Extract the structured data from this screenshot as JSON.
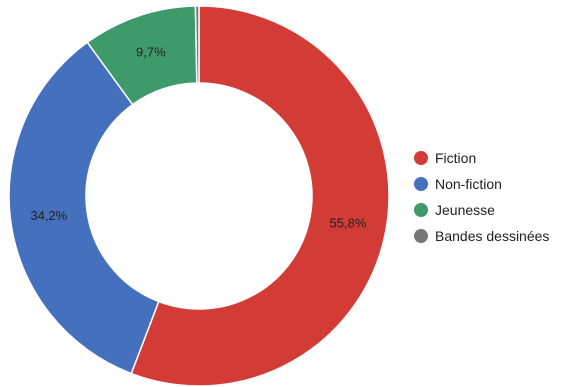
{
  "chart_data": {
    "type": "pie",
    "donut": true,
    "title": "",
    "legend_position": "right",
    "slices": [
      {
        "label": "Fiction",
        "value": 55.8,
        "display": "55,8%",
        "color": "#d33b36"
      },
      {
        "label": "Non-fiction",
        "value": 34.2,
        "display": "34,2%",
        "color": "#4470be"
      },
      {
        "label": "Jeunesse",
        "value": 9.7,
        "display": "9,7%",
        "color": "#3f9a6b"
      },
      {
        "label": "Bandes dessinées",
        "value": 0.3,
        "display": "",
        "color": "#777777"
      }
    ]
  }
}
